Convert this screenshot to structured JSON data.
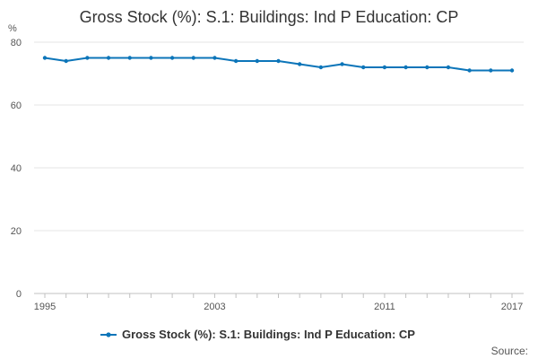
{
  "chart_data": {
    "type": "line",
    "title": "Gross Stock (%): S.1: Buildings: Ind P Education: CP",
    "ylabel": "%",
    "xlabel": "",
    "ylim": [
      0,
      80
    ],
    "yticks": [
      0,
      20,
      40,
      60,
      80
    ],
    "xlim": [
      1995,
      2017
    ],
    "xticks_labeled": [
      1995,
      2003,
      2011,
      2017
    ],
    "grid": true,
    "legend_position": "bottom",
    "series": [
      {
        "name": "Gross Stock (%): S.1: Buildings: Ind P Education: CP",
        "color": "#0c75b9",
        "x": [
          1995,
          1996,
          1997,
          1998,
          1999,
          2000,
          2001,
          2002,
          2003,
          2004,
          2005,
          2006,
          2007,
          2008,
          2009,
          2010,
          2011,
          2012,
          2013,
          2014,
          2015,
          2016,
          2017
        ],
        "values": [
          75,
          74,
          75,
          75,
          75,
          75,
          75,
          75,
          75,
          74,
          74,
          74,
          73,
          72,
          73,
          72,
          72,
          72,
          72,
          72,
          71,
          71,
          71
        ]
      }
    ],
    "source_label": "Source:"
  }
}
